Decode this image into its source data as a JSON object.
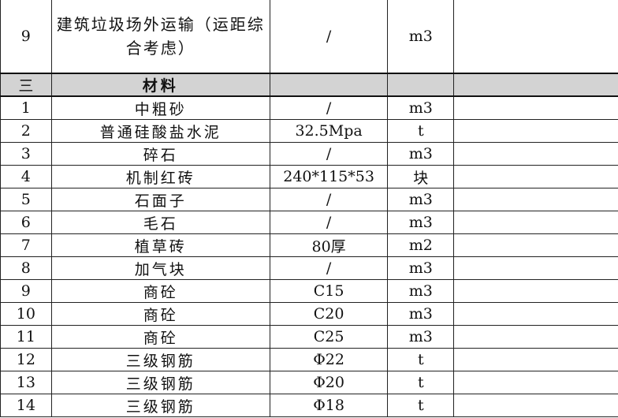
{
  "first_row": {
    "no": "9",
    "name": "建筑垃圾场外运输（运距综合考虑）",
    "spec": "/",
    "unit": "m3"
  },
  "section": {
    "no": "三",
    "name": "材料"
  },
  "rows": [
    {
      "no": "1",
      "name": "中粗砂",
      "spec": "/",
      "unit": "m3"
    },
    {
      "no": "2",
      "name": "普通硅酸盐水泥",
      "spec": "32.5Mpa",
      "unit": "t"
    },
    {
      "no": "3",
      "name": "碎石",
      "spec": "/",
      "unit": "m3"
    },
    {
      "no": "4",
      "name": "机制红砖",
      "spec": "240*115*53",
      "unit": "块"
    },
    {
      "no": "5",
      "name": "石面子",
      "spec": "/",
      "unit": "m3"
    },
    {
      "no": "6",
      "name": "毛石",
      "spec": "/",
      "unit": "m3"
    },
    {
      "no": "7",
      "name": "植草砖",
      "spec": "80厚",
      "unit": "m2"
    },
    {
      "no": "8",
      "name": "加气块",
      "spec": "/",
      "unit": "m3"
    },
    {
      "no": "9",
      "name": "商砼",
      "spec": "C15",
      "unit": "m3"
    },
    {
      "no": "10",
      "name": "商砼",
      "spec": "C20",
      "unit": "m3"
    },
    {
      "no": "11",
      "name": "商砼",
      "spec": "C25",
      "unit": "m3"
    },
    {
      "no": "12",
      "name": "三级钢筋",
      "spec": "Φ22",
      "unit": "t"
    },
    {
      "no": "13",
      "name": "三级钢筋",
      "spec": "Φ20",
      "unit": "t"
    },
    {
      "no": "14",
      "name": "三级钢筋",
      "spec": "Φ18",
      "unit": "t"
    }
  ],
  "colors": {
    "section_bg": "#d3d3d3",
    "border": "#222222"
  }
}
